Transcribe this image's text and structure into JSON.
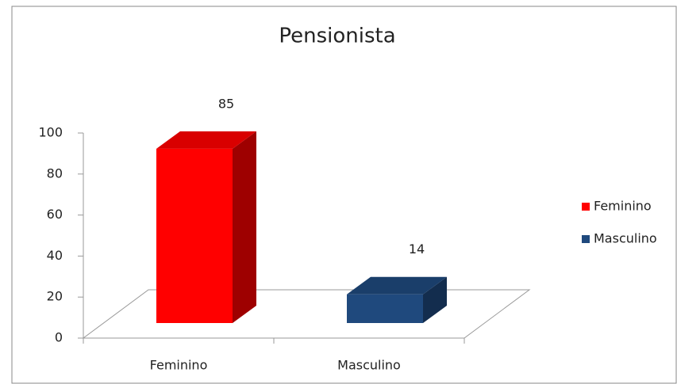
{
  "chart_data": {
    "type": "bar3d",
    "title": "Pensionista",
    "categories": [
      "Feminino",
      "Masculino"
    ],
    "series": [
      {
        "name": "Feminino",
        "color": "#ff0000",
        "values": [
          85,
          null
        ]
      },
      {
        "name": "Masculino",
        "color": "#1f497d",
        "values": [
          null,
          14
        ]
      }
    ],
    "ylim": [
      0,
      100
    ],
    "yticks": [
      0,
      20,
      40,
      60,
      80,
      100
    ],
    "legend": "right"
  }
}
